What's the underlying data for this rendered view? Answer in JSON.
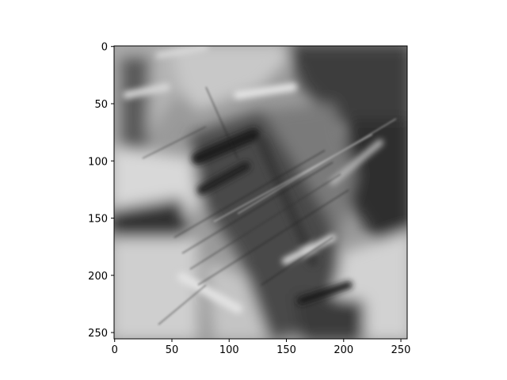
{
  "chart_data": {
    "type": "heatmap",
    "title": "",
    "xlabel": "",
    "ylabel": "",
    "colormap": "gray",
    "image_size": [
      256,
      256
    ],
    "xlim": [
      -0.5,
      255.5
    ],
    "ylim": [
      255.5,
      -0.5
    ],
    "x_ticks": [
      0,
      50,
      100,
      150,
      200,
      250
    ],
    "y_ticks": [
      0,
      50,
      100,
      150,
      200,
      250
    ],
    "grid": false,
    "legend": "none",
    "content": "grayscale image with heavy diagonal motion blur: a dark central diagonal band from upper-left to lower-right, light gray regions on the left and lower right, and dark regions in the upper right"
  }
}
